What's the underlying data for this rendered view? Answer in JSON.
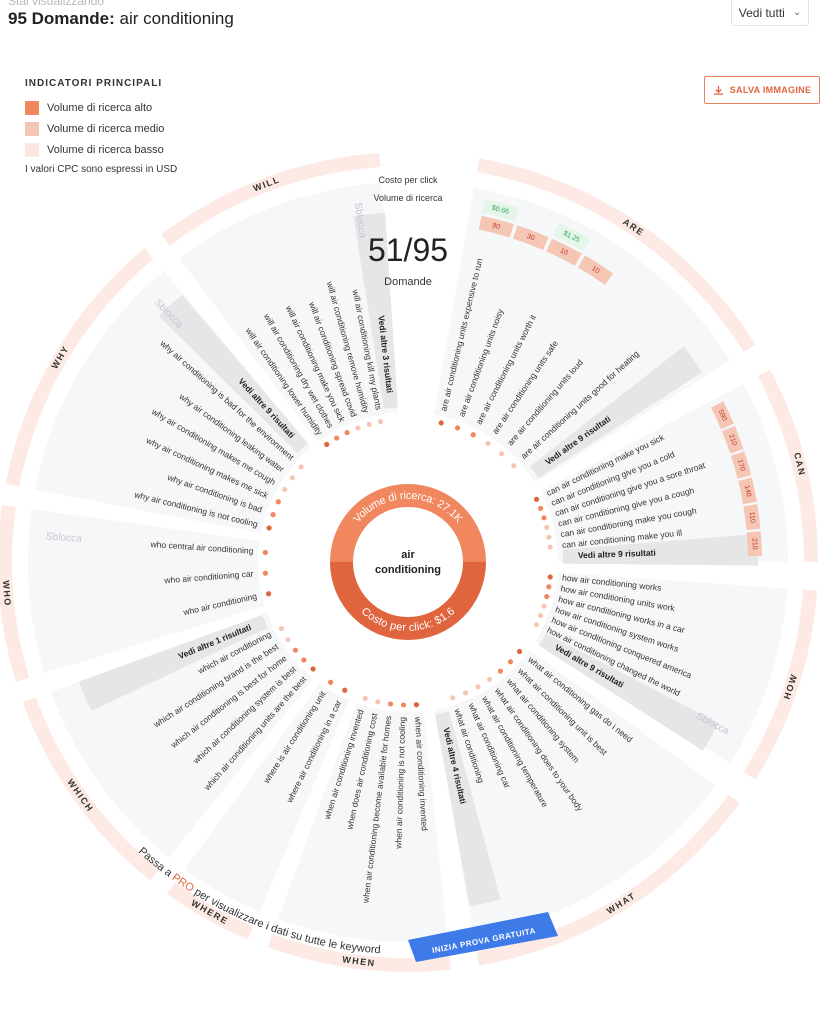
{
  "header": {
    "subtitle": "Stai visualizzando",
    "count_label": "95 Domande:",
    "keyword": "air conditioning",
    "filter_label": "Vedi tutti"
  },
  "legend": {
    "title": "INDICATORI PRINCIPALI",
    "items": [
      {
        "label": "Volume di ricerca alto",
        "color": "#f0875f"
      },
      {
        "label": "Volume di ricerca medio",
        "color": "#f6c6b4"
      },
      {
        "label": "Volume di ricerca basso",
        "color": "#fbe7df"
      }
    ],
    "note": "I valori CPC sono espressi in USD"
  },
  "save_button": {
    "label": "SALVA IMMAGINE",
    "icon": "download-icon"
  },
  "center": {
    "cpc_label": "Costo per click",
    "volume_label": "Volume di ricerca",
    "count": "51/95",
    "count_caption": "Domande",
    "keyword": "air conditioning",
    "volume_text": "Volume di ricerca: 27.1K",
    "cpc_text": "Costo per click: $1.6",
    "colors": {
      "top": "#f0875f",
      "bottom": "#e0653f"
    }
  },
  "sectors": [
    {
      "name": "ARE",
      "start": 10,
      "end": 58,
      "items": [
        "are air conditioning units expensive to run",
        "are air conditioning units noisy",
        "are air conditioning units worth it",
        "are air conditioning units safe",
        "are air conditioning units loud",
        "are air conditioning units good for heating"
      ],
      "more": "Vedi altre 9 risultati"
    },
    {
      "name": "CAN",
      "start": 62,
      "end": 90,
      "items": [
        "can air conditioning make you sick",
        "can air conditioning give you a cold",
        "can air conditioning give you a sore throat",
        "can air conditioning give you a cough",
        "can air conditioning make you cough",
        "can air conditioning make you ill"
      ],
      "more": "Vedi altre 9 risultati"
    },
    {
      "name": "HOW",
      "start": 94,
      "end": 122,
      "items": [
        "how air conditioning works",
        "how air conditioning units work",
        "how air conditioning works in a car",
        "how air conditioning system works",
        "how air conditioning conquered america",
        "how air conditioning changed the world"
      ],
      "more": "Vedi altre 9 risultati",
      "locked": "Sblocca"
    },
    {
      "name": "WHAT",
      "start": 126,
      "end": 170,
      "items": [
        "what air conditioning gas do i need",
        "what air conditioning unit is best",
        "what air conditioning system",
        "what air conditioning does to your body",
        "what air conditioning temperature",
        "what air conditioning car",
        "what air conditioning"
      ],
      "more": "Vedi altre 4 risultati"
    },
    {
      "name": "WHEN",
      "start": 174,
      "end": 200,
      "items": [
        "when air conditioning invented",
        "when air conditioning is not cooling",
        "when air conditioning become available for homes",
        "when does air conditioning cost",
        "when air conditioning invented"
      ]
    },
    {
      "name": "WHERE",
      "start": 203,
      "end": 216,
      "items": [
        "where air conditioning in a car",
        "where is air conditioning unit"
      ]
    },
    {
      "name": "WHICH",
      "start": 219,
      "end": 250,
      "items": [
        "which air conditioning units are the best",
        "which air conditioning system is best",
        "which air conditioning is best for home",
        "which air conditioning brand is the best",
        "which air conditioning"
      ],
      "more": "Vedi altre 1 risultati"
    },
    {
      "name": "WHO",
      "start": 253,
      "end": 278,
      "items": [
        "who air conditioning",
        "who air conditioning car",
        "who central air conditioning"
      ],
      "locked": "Sblocca"
    },
    {
      "name": "WHY",
      "start": 281,
      "end": 320,
      "items": [
        "why air conditioning is not cooling",
        "why air conditioning is bad",
        "why air conditioning makes me sick",
        "why air conditioning makes me cough",
        "why air conditioning leaking water",
        "why air conditioning is bad for the environment"
      ],
      "more": "Vedi altre 9 risultati",
      "locked": "Sblocca"
    },
    {
      "name": "WILL",
      "start": 323,
      "end": 356,
      "items": [
        "will air conditioning lower humidity",
        "will air conditioning dry wet clothes",
        "will air conditioning make you sick",
        "will air conditioning spread covid",
        "will air conditioning remove humidity",
        "will air conditioning kill my plants"
      ],
      "more": "Vedi altre 3 risultati",
      "locked": "Sblocca"
    }
  ],
  "metrics": {
    "are": {
      "cpc": [
        "$0.66",
        "",
        "$1.25",
        ""
      ],
      "volume": [
        "90",
        "30",
        "10",
        "10"
      ]
    },
    "can": {
      "volume": [
        "590",
        "210",
        "170",
        "140",
        "110",
        "210"
      ]
    }
  },
  "cta": {
    "text_before": "Passa a ",
    "pro": "PRO",
    "text_after": " per visualizzare i dati su tutte le keyword",
    "button": "INIZIA PROVA GRATUITA"
  }
}
